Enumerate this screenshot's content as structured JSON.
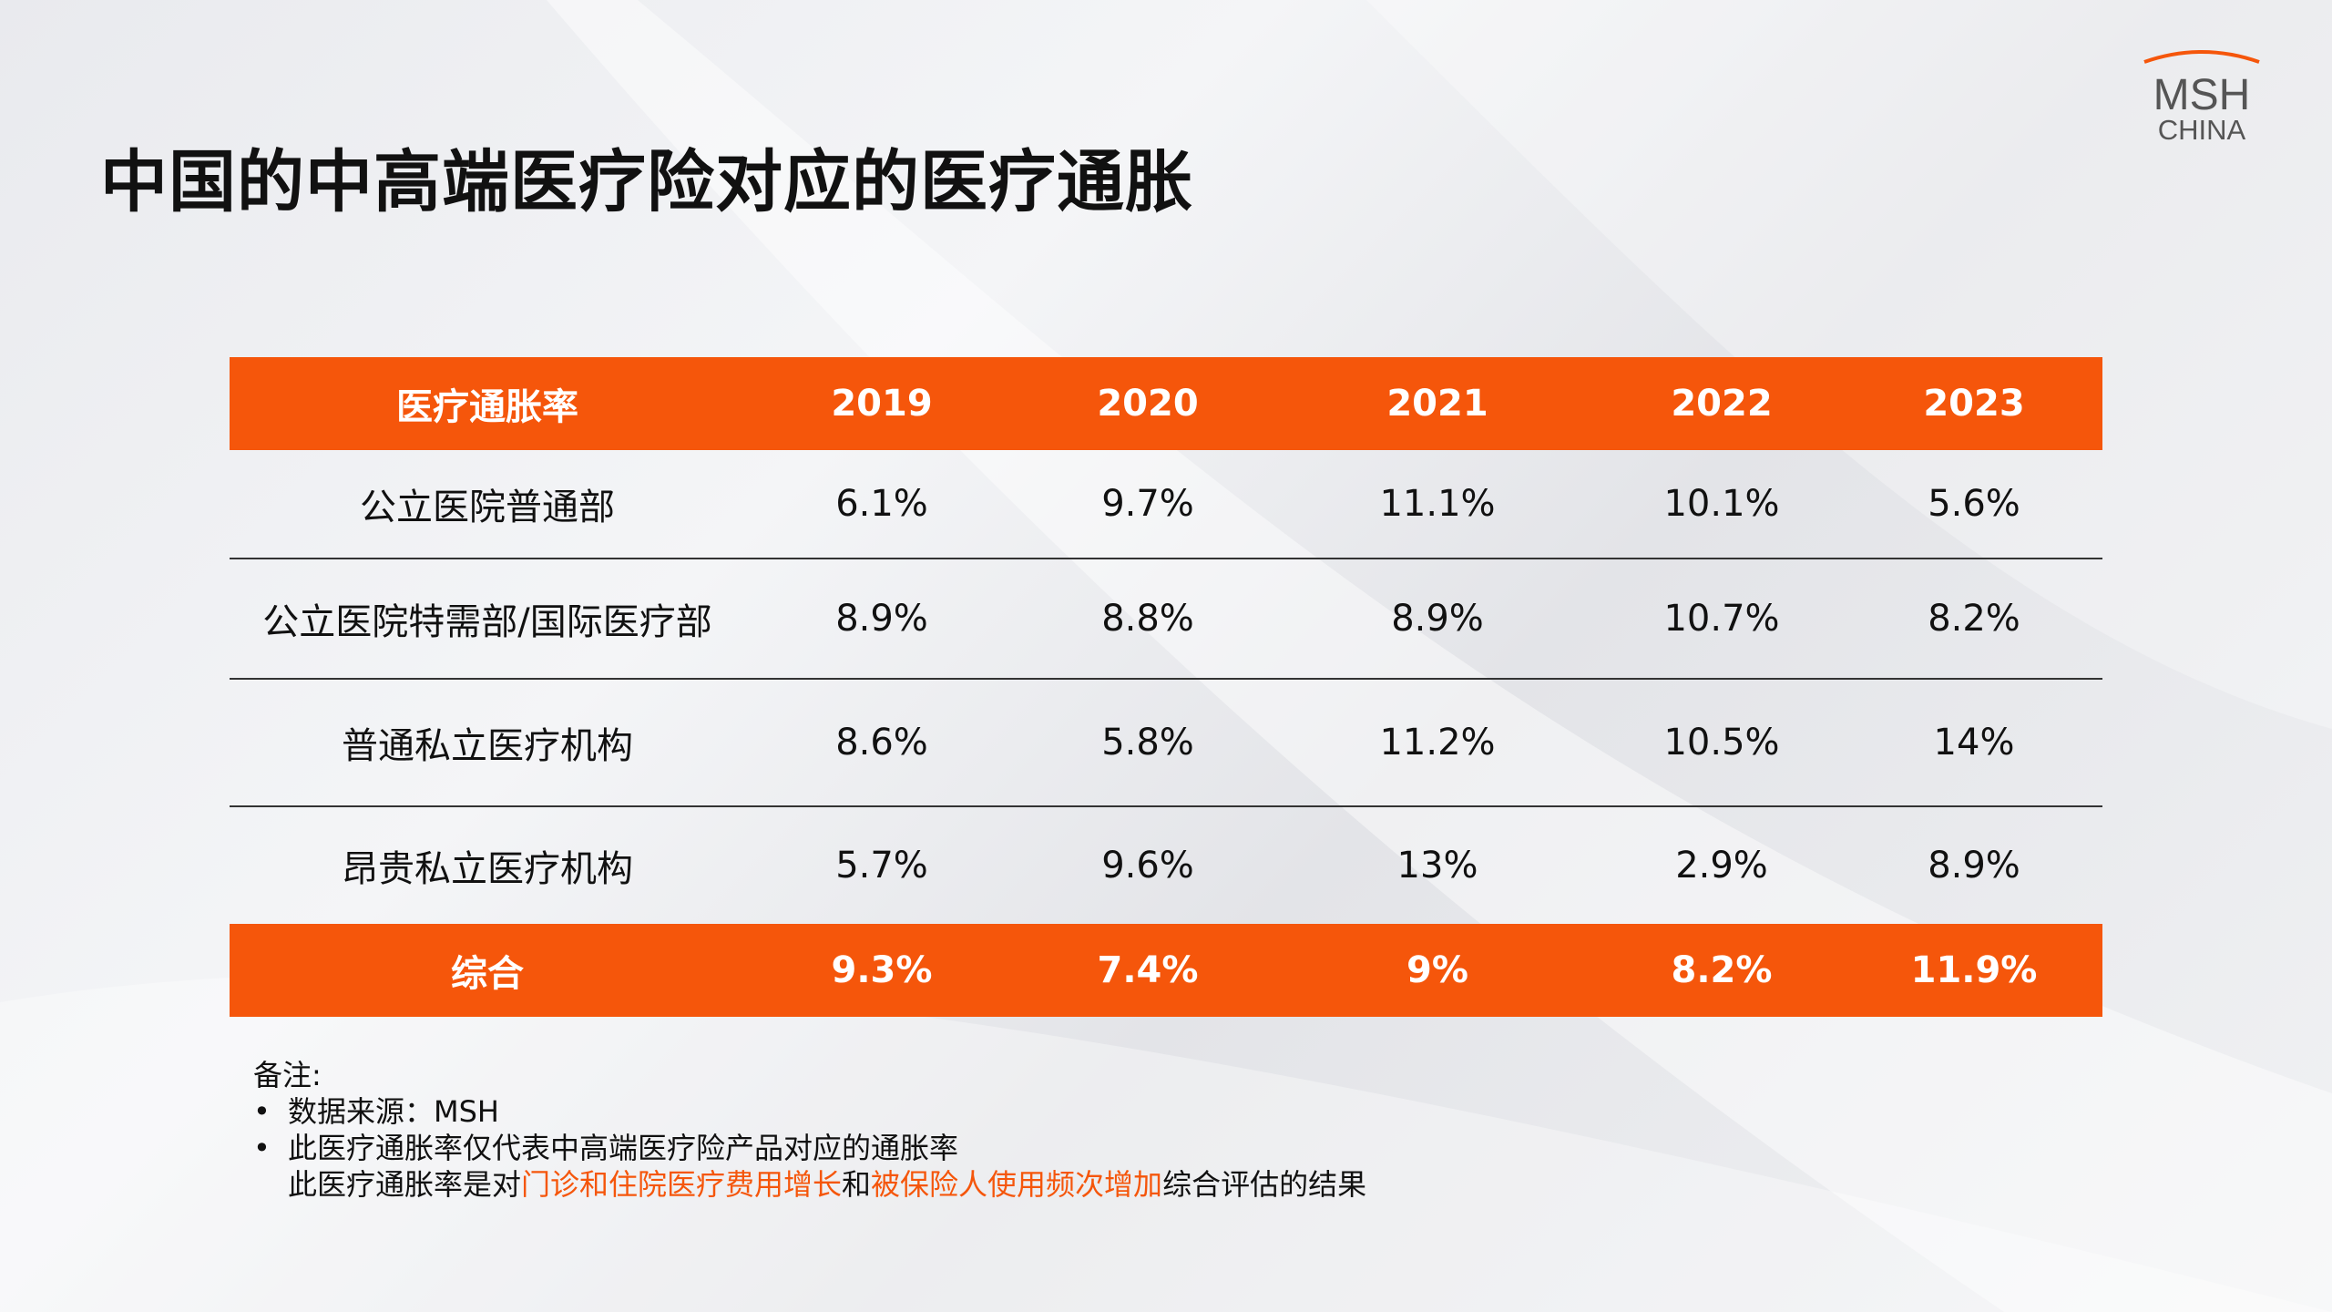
{
  "title": "中国的中高端医疗险对应的医疗通胀",
  "logo": {
    "line1": "MSH",
    "line2": "CHINA"
  },
  "colors": {
    "accent": "#f5560b",
    "text": "#111111",
    "logo": "#555555"
  },
  "chart_data": {
    "type": "table",
    "columns": [
      "医疗通胀率",
      "2019",
      "2020",
      "2021",
      "2022",
      "2023"
    ],
    "rows": [
      {
        "label": "公立医院普通部",
        "values": [
          "6.1%",
          "9.7%",
          "11.1%",
          "10.1%",
          "5.6%"
        ]
      },
      {
        "label": "公立医院特需部/国际医疗部",
        "values": [
          "8.9%",
          "8.8%",
          "8.9%",
          "10.7%",
          "8.2%"
        ]
      },
      {
        "label": "普通私立医疗机构",
        "values": [
          "8.6%",
          "5.8%",
          "11.2%",
          "10.5%",
          "14%"
        ]
      },
      {
        "label": "昂贵私立医疗机构",
        "values": [
          "5.7%",
          "9.6%",
          "13%",
          "2.9%",
          "8.9%"
        ]
      }
    ],
    "total": {
      "label": "综合",
      "values": [
        "9.3%",
        "7.4%",
        "9%",
        "8.2%",
        "11.9%"
      ]
    }
  },
  "notes": {
    "heading": "备注:",
    "bullet_char": "•",
    "item1": "数据来源：MSH",
    "item2": "此医疗通胀率仅代表中高端医疗险产品对应的通胀率",
    "item3_prefix": "此医疗通胀率是对",
    "item3_hl1": "门诊和住院医疗费用增长",
    "item3_mid": "和",
    "item3_hl2": "被保险人使用频次增加",
    "item3_suffix": "综合评估的结果"
  }
}
